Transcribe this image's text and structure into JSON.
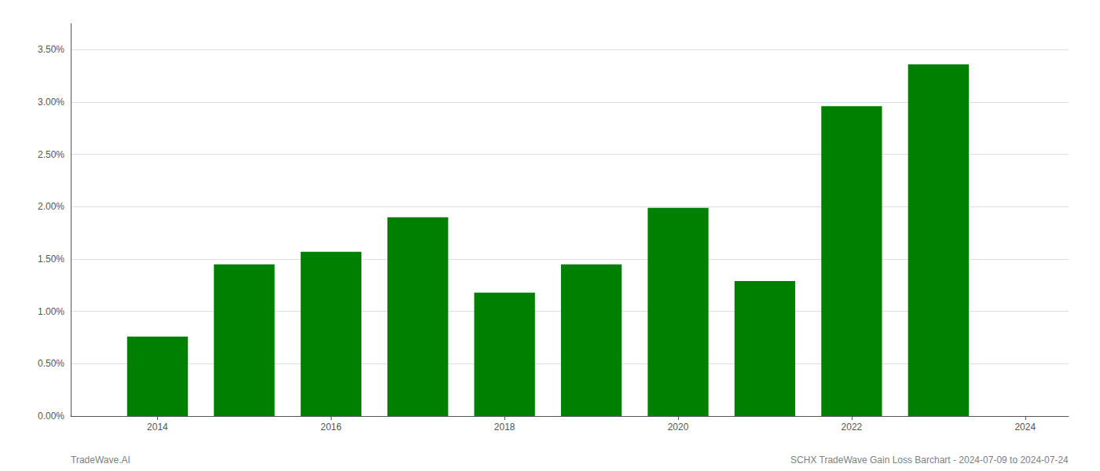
{
  "chart_data": {
    "type": "bar",
    "x": [
      2014,
      2015,
      2016,
      2017,
      2018,
      2019,
      2020,
      2021,
      2022,
      2023
    ],
    "values": [
      0.0076,
      0.0145,
      0.0157,
      0.019,
      0.0118,
      0.0145,
      0.0199,
      0.0129,
      0.0296,
      0.0336
    ],
    "color": "#008000",
    "xlim": [
      2013.0,
      2024.5
    ],
    "xticks": [
      2014,
      2016,
      2018,
      2020,
      2022,
      2024
    ],
    "ylim": [
      0,
      0.0375
    ],
    "yticks": [
      {
        "value": 0.0,
        "label": "0.00%"
      },
      {
        "value": 0.005,
        "label": "0.50%"
      },
      {
        "value": 0.01,
        "label": "1.00%"
      },
      {
        "value": 0.015,
        "label": "1.50%"
      },
      {
        "value": 0.02,
        "label": "2.00%"
      },
      {
        "value": 0.025,
        "label": "2.50%"
      },
      {
        "value": 0.03,
        "label": "3.00%"
      },
      {
        "value": 0.035,
        "label": "3.50%"
      }
    ],
    "grid": true,
    "annotations": [
      "TradeWave.AI",
      "SCHX TradeWave Gain Loss Barchart - 2024-07-09 to 2024-07-24"
    ]
  }
}
